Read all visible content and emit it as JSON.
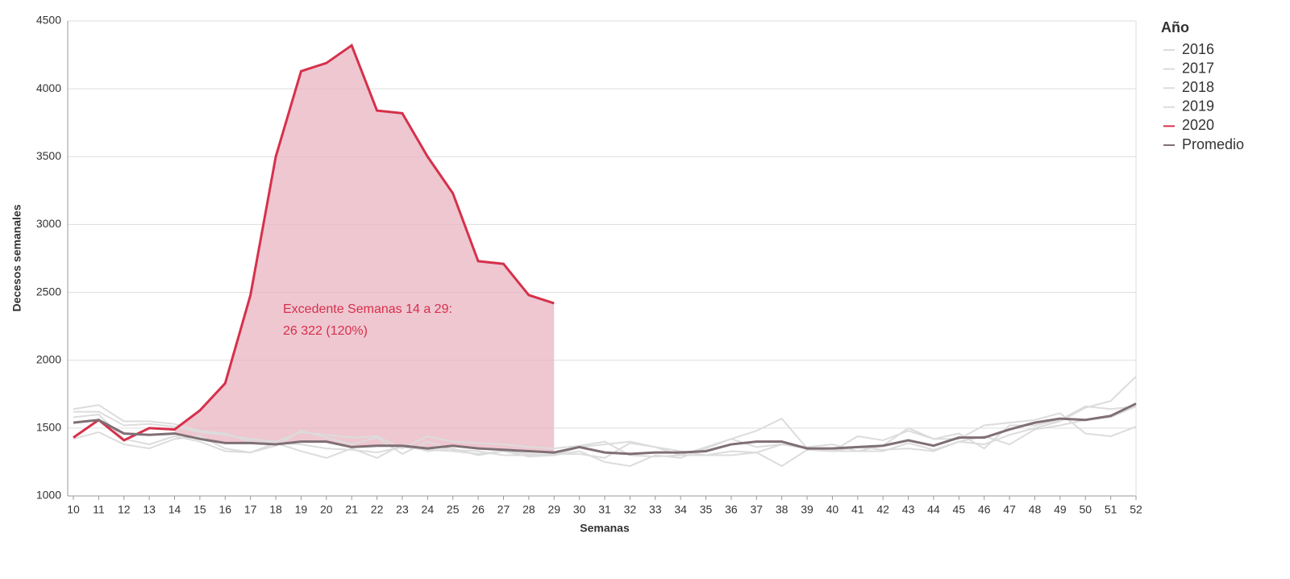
{
  "chart_data": {
    "type": "line",
    "x_label": "Semanas",
    "y_label": "Decesos semanales",
    "legend_title": "Año",
    "legend": "right",
    "x": [
      10,
      11,
      12,
      13,
      14,
      15,
      16,
      17,
      18,
      19,
      20,
      21,
      22,
      23,
      24,
      25,
      26,
      27,
      28,
      29,
      30,
      31,
      32,
      33,
      34,
      35,
      36,
      37,
      38,
      39,
      40,
      41,
      42,
      43,
      44,
      45,
      46,
      47,
      48,
      49,
      50,
      51,
      52
    ],
    "xlim": [
      10,
      52
    ],
    "ylim": [
      1000,
      4500
    ],
    "yticks": [
      1000,
      1500,
      2000,
      2500,
      3000,
      3500,
      4000,
      4500
    ],
    "grid": true,
    "series": [
      {
        "name": "2016",
        "color": "#dcdcdc",
        "values": [
          1640,
          1670,
          1550,
          1550,
          1530,
          1480,
          1460,
          1400,
          1390,
          1380,
          1350,
          1340,
          1320,
          1360,
          1340,
          1330,
          1310,
          1330,
          1310,
          1300,
          1330,
          1250,
          1220,
          1300,
          1280,
          1350,
          1420,
          1480,
          1570,
          1350,
          1330,
          1360,
          1340,
          1350,
          1330,
          1400,
          1380,
          1450,
          1500,
          1550,
          1650,
          1700,
          1880
        ]
      },
      {
        "name": "2017",
        "color": "#dcdcdc",
        "values": [
          1620,
          1620,
          1520,
          1530,
          1510,
          1470,
          1450,
          1420,
          1400,
          1470,
          1450,
          1430,
          1440,
          1350,
          1440,
          1400,
          1390,
          1380,
          1360,
          1350,
          1370,
          1400,
          1300,
          1290,
          1300,
          1300,
          1330,
          1320,
          1220,
          1340,
          1330,
          1330,
          1370,
          1500,
          1420,
          1420,
          1520,
          1540,
          1560,
          1610,
          1460,
          1440,
          1510
        ]
      },
      {
        "name": "2018",
        "color": "#dcdcdc",
        "values": [
          1420,
          1470,
          1380,
          1350,
          1420,
          1440,
          1350,
          1320,
          1390,
          1330,
          1280,
          1350,
          1280,
          1380,
          1330,
          1350,
          1300,
          1330,
          1290,
          1300,
          1360,
          1380,
          1400,
          1360,
          1300,
          1360,
          1420,
          1360,
          1380,
          1350,
          1330,
          1440,
          1410,
          1480,
          1420,
          1460,
          1350,
          1520,
          1520,
          1560,
          1660,
          1640,
          1660
        ]
      },
      {
        "name": "2019",
        "color": "#dcdcdc",
        "values": [
          1580,
          1600,
          1420,
          1380,
          1440,
          1400,
          1330,
          1320,
          1370,
          1480,
          1430,
          1380,
          1430,
          1310,
          1400,
          1340,
          1330,
          1300,
          1300,
          1310,
          1310,
          1280,
          1390,
          1360,
          1330,
          1300,
          1300,
          1320,
          1380,
          1360,
          1380,
          1330,
          1330,
          1390,
          1340,
          1400,
          1440,
          1380,
          1490,
          1520,
          1560,
          1580,
          1660
        ]
      },
      {
        "name": "2020",
        "color": "#d6304b",
        "values": [
          1430,
          1560,
          1410,
          1500,
          1490,
          1630,
          1830,
          2480,
          3500,
          4130,
          4190,
          4320,
          3840,
          3820,
          3500,
          3230,
          2730,
          2710,
          2480,
          2420,
          null,
          null,
          null,
          null,
          null,
          null,
          null,
          null,
          null,
          null,
          null,
          null,
          null,
          null,
          null,
          null,
          null,
          null,
          null,
          null,
          null,
          null,
          null
        ]
      },
      {
        "name": "Promedio",
        "color": "#7f6f74",
        "values": [
          1540,
          1560,
          1460,
          1450,
          1460,
          1420,
          1390,
          1390,
          1380,
          1400,
          1400,
          1360,
          1370,
          1370,
          1350,
          1370,
          1350,
          1340,
          1330,
          1320,
          1360,
          1320,
          1310,
          1320,
          1320,
          1330,
          1380,
          1400,
          1400,
          1350,
          1350,
          1360,
          1370,
          1410,
          1370,
          1430,
          1430,
          1490,
          1540,
          1570,
          1560,
          1590,
          1680
        ]
      }
    ],
    "shade": {
      "from": 14,
      "to": 29,
      "color": "#e8b4c1"
    },
    "annotation": {
      "lines": [
        "Excedente Semanas 14 a 29:",
        "26 322 (120%)"
      ],
      "color": "#d6304b"
    }
  }
}
